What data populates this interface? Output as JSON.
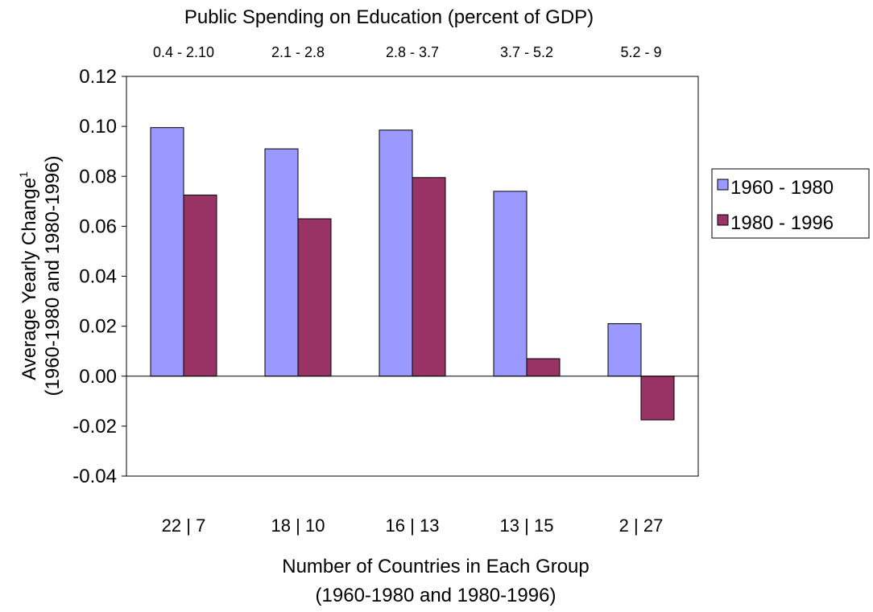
{
  "chart_data": {
    "type": "bar",
    "title": "Public Spending on Education (percent of GDP)",
    "categories": [
      "0.4 - 2.10",
      "2.1 - 2.8",
      "2.8 - 3.7",
      "3.7 - 5.2",
      "5.2 - 9"
    ],
    "country_counts": [
      "22 | 7",
      "18 | 10",
      "16 | 13",
      "13 | 15",
      "2 | 27"
    ],
    "series": [
      {
        "name": "1960 - 1980",
        "color": "#9999ff",
        "values": [
          0.0995,
          0.091,
          0.0985,
          0.074,
          0.021
        ]
      },
      {
        "name": "1980 - 1996",
        "color": "#993366",
        "values": [
          0.0725,
          0.063,
          0.0795,
          0.007,
          -0.0175
        ]
      }
    ],
    "ylabel": "Average Yearly Change",
    "ylabel_superscript": "1",
    "ylabel2": "(1960-1980 and 1980-1996)",
    "xlabel": "Number of Countries in Each Group",
    "xlabel2": "(1960-1980 and 1980-1996)",
    "ylim": [
      -0.04,
      0.12
    ],
    "yticks": [
      "0.12",
      "0.10",
      "0.08",
      "0.06",
      "0.04",
      "0.02",
      "0.00",
      "-0.02",
      "-0.04"
    ],
    "grid": false,
    "legend_position": "right"
  }
}
